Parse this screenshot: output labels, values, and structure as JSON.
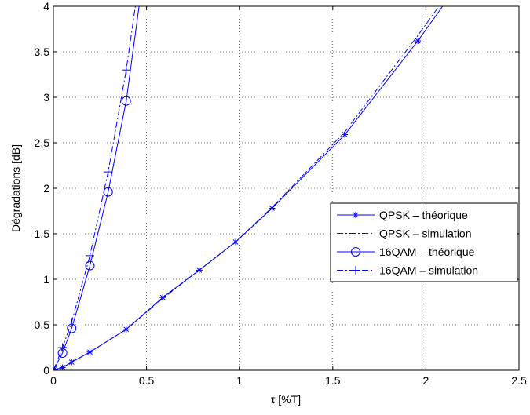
{
  "chart_data": {
    "type": "line",
    "title": "",
    "xlabel": "τ [%T]",
    "ylabel": "Dégradations [dB]",
    "xlim": [
      0,
      2.5
    ],
    "ylim": [
      0,
      4
    ],
    "xticks": [
      0,
      0.5,
      1,
      1.5,
      2,
      2.5
    ],
    "xtick_labels": [
      "0",
      "0.5",
      "1",
      "1.5",
      "2",
      "2.5"
    ],
    "yticks": [
      0,
      0.5,
      1,
      1.5,
      2,
      2.5,
      3,
      3.5,
      4
    ],
    "ytick_labels": [
      "0",
      "0.5",
      "1",
      "1.5",
      "2",
      "2.5",
      "3",
      "3.5",
      "4"
    ],
    "grid": true,
    "legend_position": "right",
    "line_color": "#0000ff",
    "series": [
      {
        "name": "QPSK – théorique",
        "line": "solid",
        "marker": "star",
        "x": [
          0,
          0.049,
          0.098,
          0.196,
          0.391,
          0.587,
          0.783,
          0.978,
          1.174,
          1.565,
          1.957,
          2.09
        ],
        "y": [
          0,
          0.03,
          0.09,
          0.2,
          0.45,
          0.8,
          1.1,
          1.41,
          1.78,
          2.59,
          3.62,
          4.0
        ]
      },
      {
        "name": "QPSK – simulation",
        "line": "dashdot",
        "marker": "none",
        "x": [
          0,
          0.049,
          0.098,
          0.196,
          0.391,
          0.587,
          0.783,
          0.978,
          1.174,
          1.565,
          1.957,
          2.07
        ],
        "y": [
          0,
          0.03,
          0.09,
          0.2,
          0.45,
          0.79,
          1.1,
          1.41,
          1.79,
          2.62,
          3.68,
          4.0
        ]
      },
      {
        "name": "16QAM – théorique",
        "line": "solid",
        "marker": "circle",
        "x": [
          0,
          0.049,
          0.098,
          0.196,
          0.294,
          0.391,
          0.46
        ],
        "y": [
          0,
          0.19,
          0.46,
          1.15,
          1.96,
          2.96,
          4.0
        ]
      },
      {
        "name": "16QAM – simulation",
        "line": "dashdot",
        "marker": "plus",
        "x": [
          0,
          0.049,
          0.098,
          0.196,
          0.294,
          0.391,
          0.44
        ],
        "y": [
          0,
          0.25,
          0.53,
          1.26,
          2.18,
          3.3,
          4.0
        ]
      }
    ]
  }
}
